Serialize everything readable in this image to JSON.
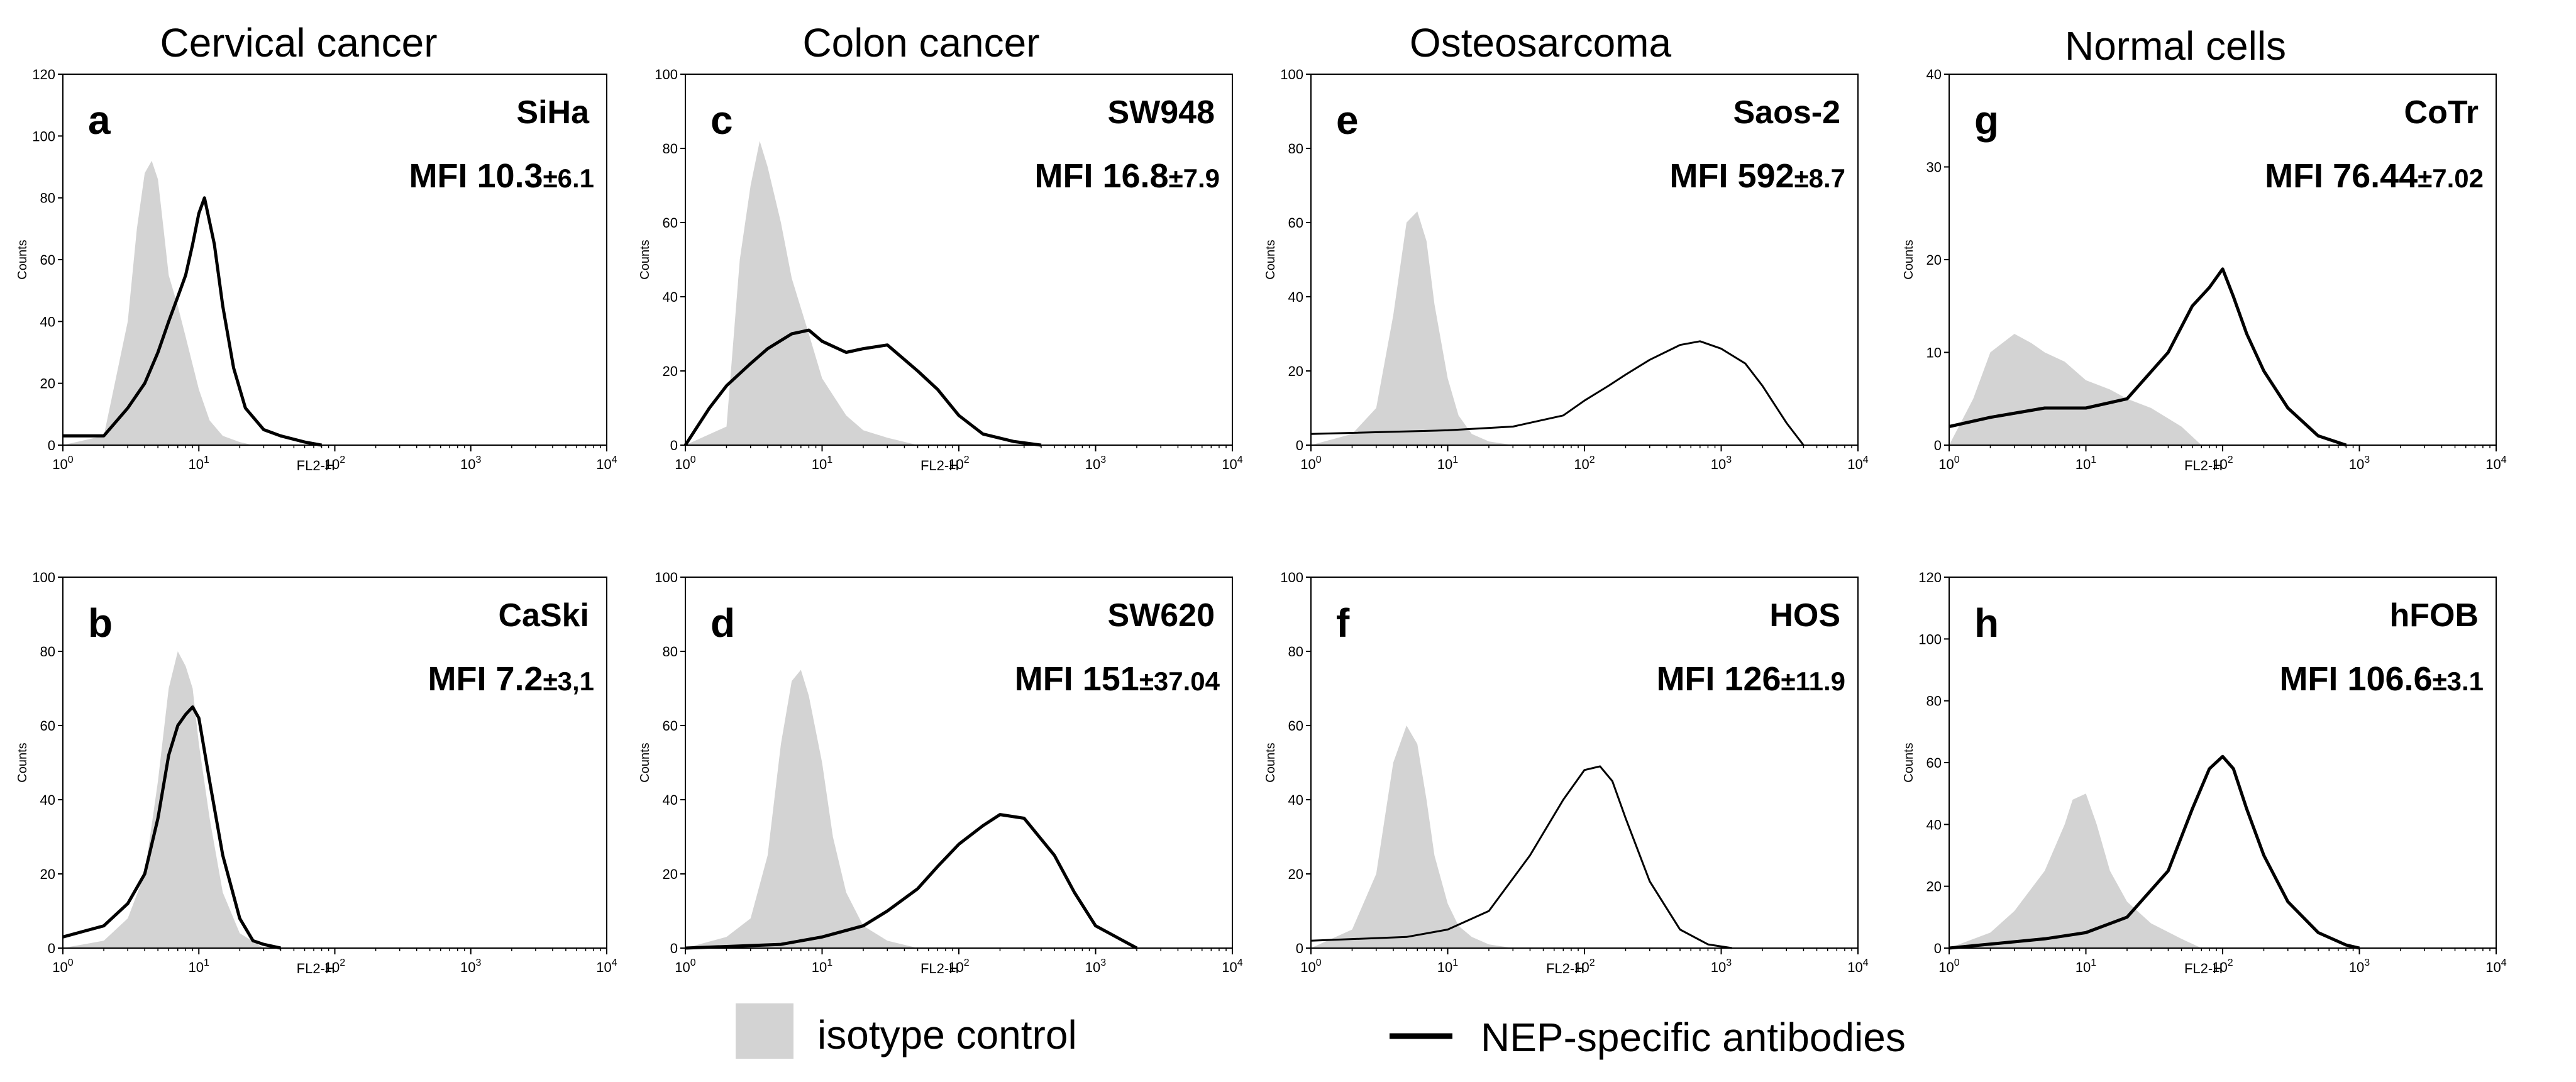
{
  "figure": {
    "columns": [
      "Cervical cancer",
      "Colon cancer",
      "Osteosarcoma",
      "Normal cells"
    ],
    "legend": {
      "isotype": "isotype control",
      "nep": "NEP-specific antibodies",
      "isotype_color": "#d3d3d3",
      "nep_color": "#000000"
    }
  },
  "chart_data": [
    {
      "type": "area",
      "panel": "a",
      "cell_line": "SiHa",
      "mfi": "MFI 10.3",
      "mfi_sd": "±6.1",
      "column": "Cervical cancer",
      "xscale": "log",
      "xlim": [
        1,
        10000
      ],
      "ylim": [
        0,
        120
      ],
      "yticks": [
        0,
        20,
        40,
        60,
        80,
        100,
        120
      ],
      "xlabel": "FL2-H",
      "ylabel": "Counts",
      "isotype": {
        "x": [
          1,
          2,
          3,
          3.5,
          4,
          4.5,
          5,
          5.5,
          6,
          7,
          8,
          10,
          12,
          15,
          20,
          25
        ],
        "y": [
          0,
          3,
          40,
          70,
          88,
          92,
          86,
          70,
          55,
          45,
          35,
          18,
          8,
          3,
          1,
          0
        ]
      },
      "nep": {
        "x": [
          1,
          2,
          3,
          4,
          5,
          6,
          7,
          8,
          9,
          10,
          11,
          13,
          15,
          18,
          22,
          30,
          40,
          60,
          80
        ],
        "y": [
          3,
          3,
          12,
          20,
          30,
          40,
          48,
          55,
          65,
          75,
          80,
          65,
          45,
          25,
          12,
          5,
          3,
          1,
          0
        ]
      }
    },
    {
      "type": "area",
      "panel": "b",
      "cell_line": "CaSki",
      "mfi": "MFI 7.2",
      "mfi_sd": "±3,1",
      "column": "Cervical cancer",
      "xscale": "log",
      "xlim": [
        1,
        10000
      ],
      "ylim": [
        0,
        100
      ],
      "yticks": [
        0,
        20,
        40,
        60,
        80,
        100
      ],
      "xlabel": "FL2-H",
      "ylabel": "Counts",
      "isotype": {
        "x": [
          1,
          2,
          3,
          4,
          5,
          6,
          7,
          8,
          9,
          10,
          12,
          15,
          20,
          30
        ],
        "y": [
          0,
          2,
          8,
          20,
          45,
          70,
          80,
          76,
          70,
          55,
          35,
          15,
          4,
          0
        ]
      },
      "nep": {
        "x": [
          1,
          2,
          3,
          4,
          5,
          6,
          7,
          8,
          9,
          10,
          12,
          15,
          20,
          25,
          30,
          40
        ],
        "y": [
          3,
          6,
          12,
          20,
          35,
          52,
          60,
          63,
          65,
          62,
          45,
          25,
          8,
          2,
          1,
          0
        ]
      }
    },
    {
      "type": "area",
      "panel": "c",
      "cell_line": "SW948",
      "mfi": "MFI 16.8",
      "mfi_sd": "±7.9",
      "column": "Colon cancer",
      "xscale": "log",
      "xlim": [
        1,
        10000
      ],
      "ylim": [
        0,
        100
      ],
      "yticks": [
        0,
        20,
        40,
        60,
        80,
        100
      ],
      "xlabel": "FL2-H",
      "ylabel": "Counts",
      "isotype": {
        "x": [
          1,
          2,
          2.5,
          3,
          3.5,
          4,
          5,
          6,
          8,
          10,
          15,
          20,
          30,
          50
        ],
        "y": [
          0,
          5,
          50,
          70,
          82,
          75,
          60,
          45,
          30,
          18,
          8,
          4,
          2,
          0
        ]
      },
      "nep": {
        "x": [
          1,
          1.5,
          2,
          3,
          4,
          6,
          8,
          10,
          15,
          20,
          30,
          50,
          70,
          100,
          150,
          250,
          400
        ],
        "y": [
          0,
          10,
          16,
          22,
          26,
          30,
          31,
          28,
          25,
          26,
          27,
          20,
          15,
          8,
          3,
          1,
          0
        ]
      }
    },
    {
      "type": "area",
      "panel": "d",
      "cell_line": "SW620",
      "mfi": "MFI 151",
      "mfi_sd": "±37.04",
      "column": "Colon cancer",
      "xscale": "log",
      "xlim": [
        1,
        10000
      ],
      "ylim": [
        0,
        100
      ],
      "yticks": [
        0,
        20,
        40,
        60,
        80,
        100
      ],
      "xlabel": "FL2-H",
      "ylabel": "Counts",
      "isotype": {
        "x": [
          1,
          2,
          3,
          4,
          5,
          6,
          7,
          8,
          10,
          12,
          15,
          20,
          30,
          50
        ],
        "y": [
          0,
          3,
          8,
          25,
          55,
          72,
          75,
          68,
          50,
          30,
          15,
          6,
          2,
          0
        ]
      },
      "nep": {
        "x": [
          1,
          5,
          10,
          20,
          30,
          50,
          70,
          100,
          150,
          200,
          300,
          500,
          700,
          1000,
          2000
        ],
        "y": [
          0,
          1,
          3,
          6,
          10,
          16,
          22,
          28,
          33,
          36,
          35,
          25,
          15,
          6,
          0
        ]
      }
    },
    {
      "type": "area",
      "panel": "e",
      "cell_line": "Saos-2",
      "mfi": "MFI 592",
      "mfi_sd": "±8.7",
      "column": "Osteosarcoma",
      "xscale": "log",
      "xlim": [
        1,
        10000
      ],
      "ylim": [
        0,
        100
      ],
      "yticks": [
        0,
        20,
        40,
        60,
        80,
        100
      ],
      "xlabel": "",
      "ylabel": "Counts",
      "isotype": {
        "x": [
          1,
          2,
          3,
          4,
          5,
          6,
          7,
          8,
          10,
          12,
          15,
          20,
          30
        ],
        "y": [
          0,
          3,
          10,
          35,
          60,
          63,
          55,
          38,
          18,
          8,
          3,
          1,
          0
        ]
      },
      "nep": {
        "x": [
          1,
          10,
          30,
          70,
          100,
          150,
          200,
          300,
          500,
          700,
          1000,
          1500,
          2000,
          3000,
          4000
        ],
        "y": [
          3,
          4,
          5,
          8,
          12,
          16,
          19,
          23,
          27,
          28,
          26,
          22,
          16,
          6,
          0
        ]
      }
    },
    {
      "type": "area",
      "panel": "f",
      "cell_line": "HOS",
      "mfi": "MFI 126",
      "mfi_sd": "±11.9",
      "column": "Osteosarcoma",
      "xscale": "log",
      "xlim": [
        1,
        10000
      ],
      "ylim": [
        0,
        100
      ],
      "yticks": [
        0,
        20,
        40,
        60,
        80,
        100
      ],
      "xlabel": "FL2-H",
      "ylabel": "Counts",
      "isotype": {
        "x": [
          1,
          2,
          3,
          4,
          5,
          6,
          7,
          8,
          10,
          12,
          15,
          20,
          30
        ],
        "y": [
          0,
          5,
          20,
          50,
          60,
          55,
          40,
          25,
          12,
          6,
          3,
          1,
          0
        ]
      },
      "nep": {
        "x": [
          1,
          5,
          10,
          20,
          40,
          70,
          100,
          130,
          160,
          200,
          300,
          500,
          800,
          1200
        ],
        "y": [
          2,
          3,
          5,
          10,
          25,
          40,
          48,
          49,
          45,
          35,
          18,
          5,
          1,
          0
        ]
      }
    },
    {
      "type": "area",
      "panel": "g",
      "cell_line": "CoTr",
      "mfi": "MFI 76.44",
      "mfi_sd": "±7.02",
      "column": "Normal cells",
      "xscale": "log",
      "xlim": [
        1,
        10000
      ],
      "ylim": [
        0,
        40
      ],
      "yticks": [
        0,
        10,
        20,
        30,
        40
      ],
      "xlabel": "FL2-H",
      "ylabel": "Counts",
      "isotype": {
        "x": [
          1,
          1.5,
          2,
          3,
          4,
          5,
          7,
          10,
          15,
          20,
          30,
          50,
          70
        ],
        "y": [
          0,
          5,
          10,
          12,
          11,
          10,
          9,
          7,
          6,
          5,
          4,
          2,
          0
        ]
      },
      "nep": {
        "x": [
          1,
          2,
          5,
          10,
          20,
          40,
          60,
          80,
          100,
          120,
          150,
          200,
          300,
          500,
          800
        ],
        "y": [
          2,
          3,
          4,
          4,
          5,
          10,
          15,
          17,
          19,
          16,
          12,
          8,
          4,
          1,
          0
        ]
      }
    },
    {
      "type": "area",
      "panel": "h",
      "cell_line": "hFOB",
      "mfi": "MFI 106.6",
      "mfi_sd": "±3.1",
      "column": "Normal cells",
      "xscale": "log",
      "xlim": [
        1,
        10000
      ],
      "ylim": [
        0,
        120
      ],
      "yticks": [
        0,
        20,
        40,
        60,
        80,
        100,
        120
      ],
      "xlabel": "FL2-H",
      "ylabel": "Counts",
      "isotype": {
        "x": [
          1,
          2,
          3,
          5,
          7,
          8,
          10,
          12,
          15,
          20,
          30,
          50,
          70
        ],
        "y": [
          0,
          5,
          12,
          25,
          40,
          48,
          50,
          40,
          25,
          15,
          8,
          3,
          0
        ]
      },
      "nep": {
        "x": [
          1,
          5,
          10,
          20,
          40,
          60,
          80,
          100,
          120,
          150,
          200,
          300,
          500,
          800,
          1000
        ],
        "y": [
          0,
          3,
          5,
          10,
          25,
          45,
          58,
          62,
          58,
          45,
          30,
          15,
          5,
          1,
          0
        ]
      }
    }
  ]
}
